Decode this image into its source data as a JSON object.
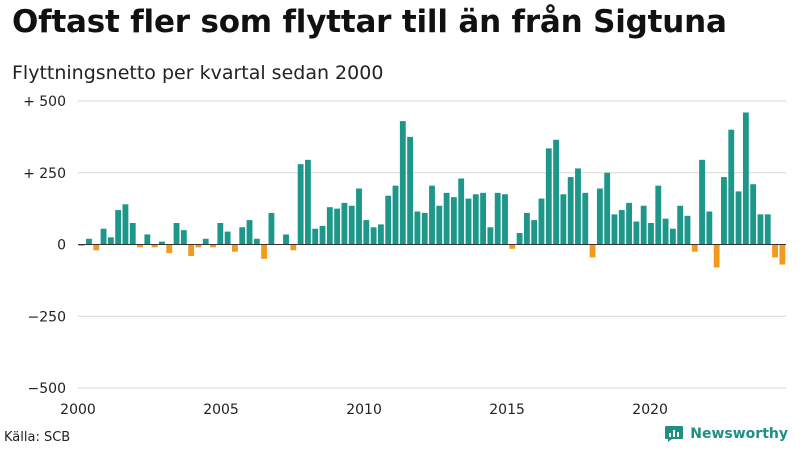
{
  "title": "Oftast fler som flyttar till än från Sigtuna",
  "subtitle": "Flyttningsnetto per kvartal sedan 2000",
  "source": "Källa: SCB",
  "brand": {
    "name": "Newsworthy",
    "icon": "newsworthy-logo-icon",
    "color": "#1f8f83"
  },
  "colors": {
    "positive": "#1c978a",
    "negative": "#f39a1c",
    "grid": "#d9d9d9"
  },
  "chart_data": {
    "type": "bar",
    "x_start": 2000,
    "periods_per_year": 4,
    "ylim": [
      -500,
      500
    ],
    "y_ticks": [
      {
        "value": 500,
        "label": "+ 500"
      },
      {
        "value": 250,
        "label": "+ 250"
      },
      {
        "value": 0,
        "label": "0"
      },
      {
        "value": -250,
        "label": "−250"
      },
      {
        "value": -500,
        "label": "−500"
      }
    ],
    "x_ticks": [
      {
        "value": 2000,
        "label": "2000"
      },
      {
        "value": 2005,
        "label": "2005"
      },
      {
        "value": 2010,
        "label": "2010"
      },
      {
        "value": 2015,
        "label": "2015"
      },
      {
        "value": 2020,
        "label": "2020"
      }
    ],
    "grid": true,
    "values": [
      -5,
      20,
      -20,
      55,
      25,
      120,
      140,
      75,
      -10,
      35,
      -10,
      10,
      -30,
      75,
      50,
      -40,
      -10,
      20,
      -10,
      75,
      45,
      -25,
      60,
      85,
      20,
      -50,
      110,
      0,
      35,
      -20,
      280,
      295,
      55,
      65,
      130,
      125,
      145,
      135,
      195,
      85,
      60,
      70,
      170,
      205,
      430,
      375,
      115,
      110,
      205,
      135,
      180,
      165,
      230,
      160,
      175,
      180,
      60,
      180,
      175,
      -15,
      40,
      110,
      85,
      160,
      335,
      365,
      175,
      235,
      265,
      180,
      -45,
      195,
      250,
      105,
      120,
      145,
      80,
      135,
      75,
      205,
      90,
      55,
      135,
      100,
      -25,
      295,
      115,
      -80,
      235,
      400,
      185,
      460,
      210,
      105,
      105,
      -45,
      -70
    ]
  }
}
